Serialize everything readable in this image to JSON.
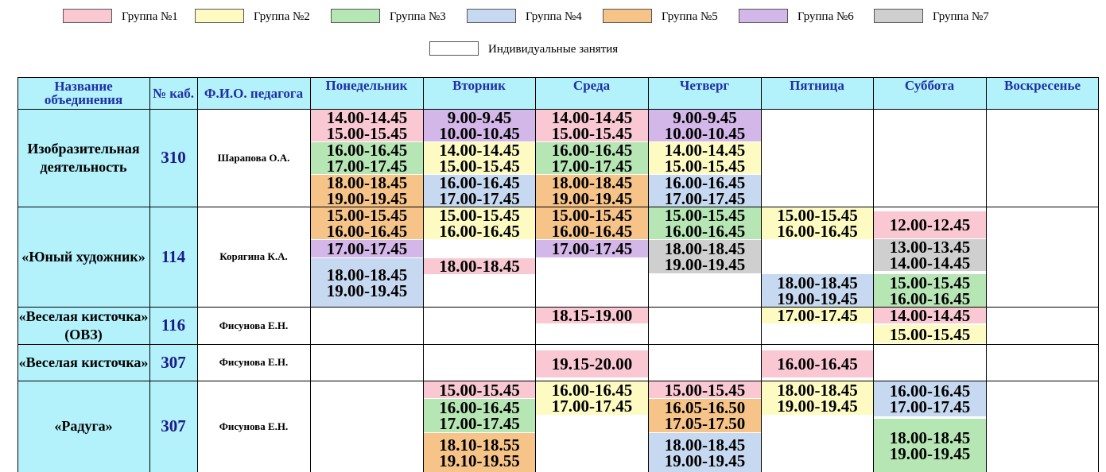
{
  "legend": [
    {
      "label": "Группа №1",
      "color": "#f9c8d2"
    },
    {
      "label": "Группа №2",
      "color": "#fefbc2"
    },
    {
      "label": "Группа №3",
      "color": "#b5e6b4"
    },
    {
      "label": "Группа №4",
      "color": "#c6d9f0"
    },
    {
      "label": "Группа №5",
      "color": "#f6c488"
    },
    {
      "label": "Группа №6",
      "color": "#d3b7e8"
    },
    {
      "label": "Группа №7",
      "color": "#cfcfcf"
    },
    {
      "label": "Индивидуальные занятия",
      "color": "#ffffff"
    }
  ],
  "header": {
    "name": "Название объединения",
    "room": "№ каб.",
    "teacher": "Ф.И.О. педагога",
    "days": [
      "Понедельник",
      "Вторник",
      "Среда",
      "Четверг",
      "Пятница",
      "Суббота",
      "Воскресенье"
    ]
  },
  "rows": [
    {
      "name": "Изобразительная деятельность",
      "room": "310",
      "teacher": "Шарапова О.А.",
      "slots": [
        {
          "day": 0,
          "group": 1,
          "times": [
            "14.00-14.45",
            "15.00-15.45"
          ]
        },
        {
          "day": 0,
          "group": 3,
          "times": [
            "16.00-16.45",
            "17.00-17.45"
          ]
        },
        {
          "day": 0,
          "group": 5,
          "times": [
            "18.00-18.45",
            "19.00-19.45"
          ]
        },
        {
          "day": 1,
          "group": 6,
          "times": [
            "9.00-9.45",
            "10.00-10.45"
          ]
        },
        {
          "day": 1,
          "group": 2,
          "times": [
            "14.00-14.45",
            "15.00-15.45"
          ]
        },
        {
          "day": 1,
          "group": 4,
          "times": [
            "16.00-16.45",
            "17.00-17.45"
          ]
        },
        {
          "day": 2,
          "group": 1,
          "times": [
            "14.00-14.45",
            "15.00-15.45"
          ]
        },
        {
          "day": 2,
          "group": 3,
          "times": [
            "16.00-16.45",
            "17.00-17.45"
          ]
        },
        {
          "day": 2,
          "group": 5,
          "times": [
            "18.00-18.45",
            "19.00-19.45"
          ]
        },
        {
          "day": 3,
          "group": 6,
          "times": [
            "9.00-9.45",
            "10.00-10.45"
          ]
        },
        {
          "day": 3,
          "group": 2,
          "times": [
            "14.00-14.45",
            "15.00-15.45"
          ]
        },
        {
          "day": 3,
          "group": 4,
          "times": [
            "16.00-16.45",
            "17.00-17.45"
          ]
        }
      ]
    },
    {
      "name": "«Юный художник»",
      "room": "114",
      "teacher": "Корягина К.А.",
      "slots": [
        {
          "day": 0,
          "group": 5,
          "times": [
            "15.00-15.45",
            "16.00-16.45"
          ]
        },
        {
          "day": 0,
          "group": 6,
          "times": [
            "17.00-17.45"
          ]
        },
        {
          "day": 0,
          "group": 4,
          "times": [
            "18.00-18.45",
            "19.00-19.45"
          ]
        },
        {
          "day": 1,
          "group": 2,
          "times": [
            "15.00-15.45",
            "16.00-16.45"
          ]
        },
        {
          "day": 1,
          "group": 1,
          "times": [
            "18.00-18.45"
          ]
        },
        {
          "day": 2,
          "group": 5,
          "times": [
            "15.00-15.45",
            "16.00-16.45"
          ]
        },
        {
          "day": 2,
          "group": 6,
          "times": [
            "17.00-17.45"
          ]
        },
        {
          "day": 3,
          "group": 3,
          "times": [
            "15.00-15.45",
            "16.00-16.45"
          ]
        },
        {
          "day": 3,
          "group": 7,
          "times": [
            "18.00-18.45",
            "19.00-19.45"
          ]
        },
        {
          "day": 4,
          "group": 2,
          "times": [
            "15.00-15.45",
            "16.00-16.45"
          ]
        },
        {
          "day": 4,
          "group": 4,
          "times": [
            "18.00-18.45",
            "19.00-19.45"
          ]
        },
        {
          "day": 5,
          "group": 1,
          "times": [
            "12.00-12.45"
          ]
        },
        {
          "day": 5,
          "group": 7,
          "times": [
            "13.00-13.45",
            "14.00-14.45"
          ]
        },
        {
          "day": 5,
          "group": 3,
          "times": [
            "15.00-15.45",
            "16.00-16.45"
          ]
        }
      ]
    },
    {
      "name": "«Веселая кисточка» (ОВЗ)",
      "room": "116",
      "teacher": "Фисунова Е.Н.",
      "slots": [
        {
          "day": 2,
          "group": 1,
          "times": [
            "18.15-19.00"
          ]
        },
        {
          "day": 4,
          "group": 2,
          "times": [
            "17.00-17.45"
          ]
        },
        {
          "day": 5,
          "group": 1,
          "times": [
            "14.00-14.45"
          ]
        },
        {
          "day": 5,
          "group": 2,
          "times": [
            "15.00-15.45"
          ]
        }
      ]
    },
    {
      "name": "«Веселая кисточка»",
      "room": "307",
      "teacher": "Фисунова Е.Н.",
      "slots": [
        {
          "day": 2,
          "group": 1,
          "times": [
            "19.15-20.00"
          ]
        },
        {
          "day": 4,
          "group": 1,
          "times": [
            "16.00-16.45"
          ]
        }
      ]
    },
    {
      "name": "«Радуга»",
      "room": "307",
      "teacher": "Фисунова Е.Н.",
      "slots": [
        {
          "day": 1,
          "group": 1,
          "times": [
            "15.00-15.45"
          ]
        },
        {
          "day": 1,
          "group": 3,
          "times": [
            "16.00-16.45",
            "17.00-17.45"
          ]
        },
        {
          "day": 1,
          "group": 5,
          "times": [
            "18.10-18.55",
            "19.10-19.55"
          ]
        },
        {
          "day": 2,
          "group": 2,
          "times": [
            "16.00-16.45",
            "17.00-17.45"
          ]
        },
        {
          "day": 3,
          "group": 1,
          "times": [
            "15.00-15.45"
          ]
        },
        {
          "day": 3,
          "group": 5,
          "times": [
            "16.05-16.50",
            "17.05-17.50"
          ]
        },
        {
          "day": 3,
          "group": 4,
          "times": [
            "18.00-18.45",
            "19.00-19.45"
          ]
        },
        {
          "day": 4,
          "group": 2,
          "times": [
            "18.00-18.45",
            "19.00-19.45"
          ]
        },
        {
          "day": 5,
          "group": 4,
          "times": [
            "16.00-16.45",
            "17.00-17.45"
          ]
        },
        {
          "day": 5,
          "group": 3,
          "times": [
            "18.00-18.45",
            "19.00-19.45"
          ]
        }
      ]
    }
  ]
}
